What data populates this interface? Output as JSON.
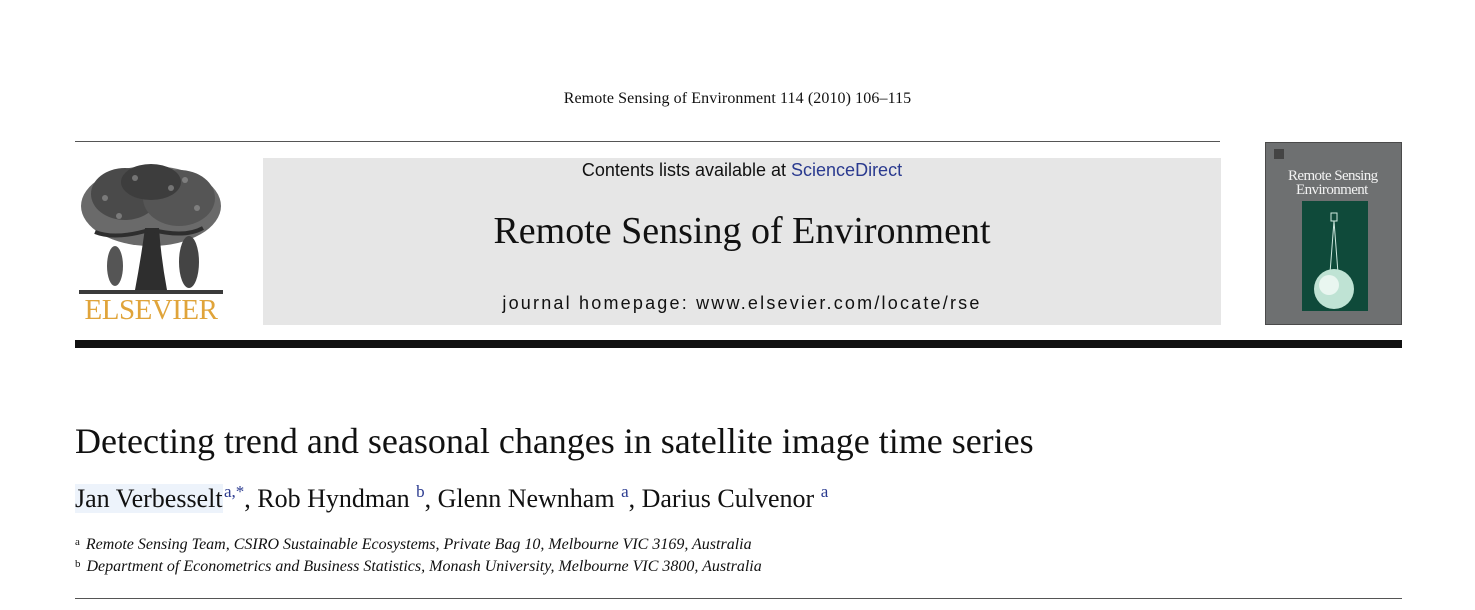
{
  "header": {
    "citation": "Remote Sensing of Environment 114 (2010) 106–115"
  },
  "publisher": {
    "logo_text": "ELSEVIER",
    "logo_color": "#e0a43a"
  },
  "banner": {
    "contents_prefix": "Contents lists available at",
    "contents_link": "ScienceDirect",
    "journal_title": "Remote Sensing of Environment",
    "homepage": "journal homepage: www.elsevier.com/locate/rse",
    "background": "#e6e6e6"
  },
  "cover": {
    "title_line1": "Remote Sensing",
    "title_line2": "Environment",
    "background": "#6e7071",
    "panel_color": "#0f4a3a"
  },
  "article": {
    "title": "Detecting trend and seasonal changes in satellite image time series",
    "authors": [
      {
        "name": "Jan Verbesselt",
        "sup": "a,*"
      },
      {
        "name": "Rob Hyndman",
        "sup": "b"
      },
      {
        "name": "Glenn Newnham",
        "sup": "a"
      },
      {
        "name": "Darius Culvenor",
        "sup": "a"
      }
    ],
    "affiliations": [
      {
        "marker": "a",
        "text": "Remote Sensing Team, CSIRO Sustainable Ecosystems, Private Bag 10, Melbourne VIC 3169, Australia"
      },
      {
        "marker": "b",
        "text": "Department of Econometrics and Business Statistics, Monash University, Melbourne VIC 3800, Australia"
      }
    ]
  },
  "colors": {
    "link": "#2a3a8f"
  }
}
